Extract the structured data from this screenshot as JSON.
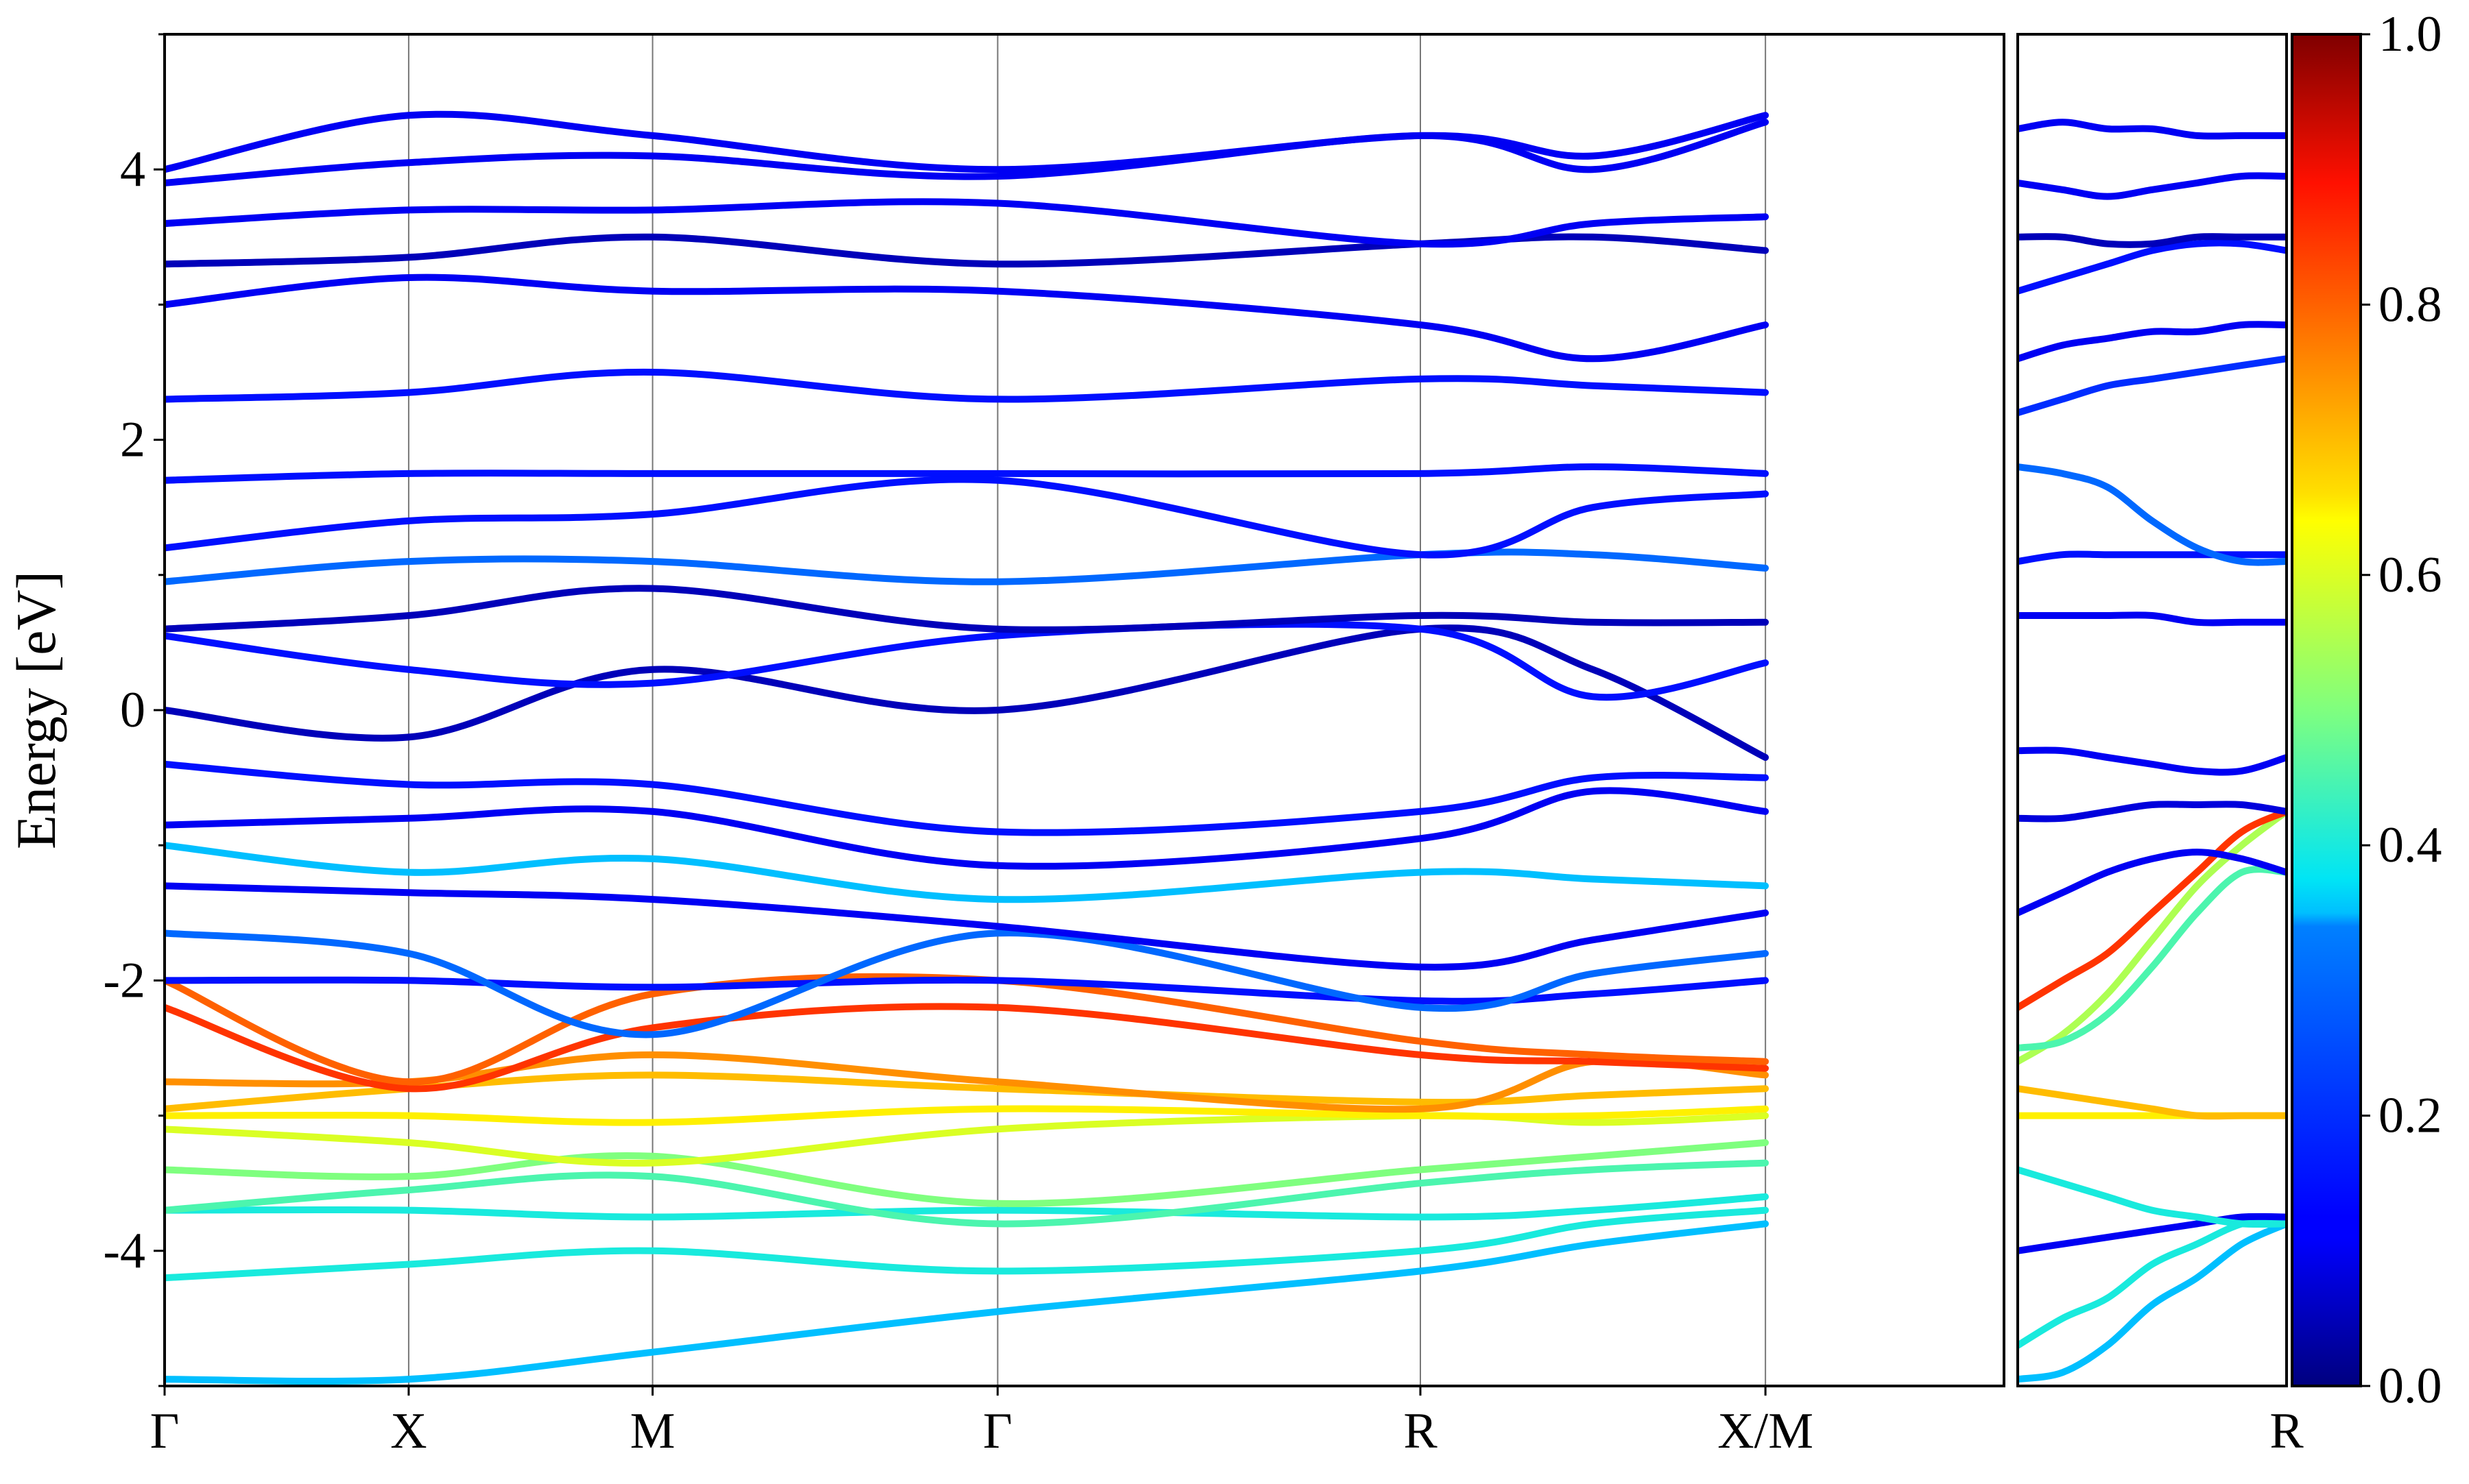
{
  "chart_data": {
    "type": "line",
    "title": "",
    "xlabel": "",
    "ylabel": "Energy [eV]",
    "ylim": [
      -5,
      5
    ],
    "yticks": [
      {
        "value": 4,
        "label": "4"
      },
      {
        "value": 2,
        "label": "2"
      },
      {
        "value": 0,
        "label": "0"
      },
      {
        "value": -2,
        "label": "-2"
      },
      {
        "value": -4,
        "label": "-4"
      }
    ],
    "path_segments": [
      {
        "xlim": [
          0,
          1
        ],
        "high_symmetry_points": [
          {
            "pos": 0.0,
            "label": "Γ"
          },
          {
            "pos": 0.1327,
            "label": "X"
          },
          {
            "pos": 0.2653,
            "label": "M"
          },
          {
            "pos": 0.4529,
            "label": "Γ"
          },
          {
            "pos": 0.6827,
            "label": "R"
          },
          {
            "pos": 0.8703,
            "label": "X/M"
          }
        ]
      },
      {
        "xlim": [
          0,
          1
        ],
        "high_symmetry_points": [
          {
            "pos": 1.0,
            "label": "R"
          }
        ]
      }
    ],
    "colorbar": {
      "colormap": "jet",
      "range": [
        0.0,
        1.0
      ],
      "ticks": [
        {
          "value": 0.0,
          "label": "0.0"
        },
        {
          "value": 0.2,
          "label": "0.2"
        },
        {
          "value": 0.4,
          "label": "0.4"
        },
        {
          "value": 0.6,
          "label": "0.6"
        },
        {
          "value": 0.8,
          "label": "0.8"
        },
        {
          "value": 1.0,
          "label": "1.0"
        }
      ]
    },
    "segment1_bands": [
      {
        "e": [
          -4.95,
          -4.95,
          -4.75,
          -4.45,
          -4.15,
          -3.95,
          -3.8
        ],
        "w": 0.35
      },
      {
        "e": [
          -4.2,
          -4.1,
          -4.0,
          -4.15,
          -4.0,
          -3.8,
          -3.7
        ],
        "w": 0.4
      },
      {
        "e": [
          -3.7,
          -3.7,
          -3.75,
          -3.7,
          -3.75,
          -3.7,
          -3.6
        ],
        "w": 0.4
      },
      {
        "e": [
          -3.7,
          -3.55,
          -3.45,
          -3.8,
          -3.5,
          -3.4,
          -3.35
        ],
        "w": 0.45
      },
      {
        "e": [
          -3.4,
          -3.45,
          -3.3,
          -3.65,
          -3.4,
          -3.3,
          -3.2
        ],
        "w": 0.5
      },
      {
        "e": [
          -3.1,
          -3.2,
          -3.35,
          -3.1,
          -3.0,
          -3.05,
          -3.0
        ],
        "w": 0.6
      },
      {
        "e": [
          -3.0,
          -3.0,
          -3.05,
          -2.95,
          -3.0,
          -3.0,
          -2.95
        ],
        "w": 0.65
      },
      {
        "e": [
          -2.95,
          -2.8,
          -2.7,
          -2.8,
          -2.9,
          -2.85,
          -2.8
        ],
        "w": 0.7
      },
      {
        "e": [
          -2.75,
          -2.75,
          -2.55,
          -2.75,
          -2.95,
          -2.6,
          -2.7
        ],
        "w": 0.75
      },
      {
        "e": [
          -2.2,
          -2.8,
          -2.35,
          -2.2,
          -2.55,
          -2.6,
          -2.65
        ],
        "w": 0.85
      },
      {
        "e": [
          -2.0,
          -2.75,
          -2.1,
          -2.0,
          -2.45,
          -2.55,
          -2.6
        ],
        "w": 0.8
      },
      {
        "e": [
          -2.0,
          -2.0,
          -2.05,
          -2.0,
          -2.15,
          -2.1,
          -2.0
        ],
        "w": 0.15
      },
      {
        "e": [
          -1.65,
          -1.8,
          -2.4,
          -1.65,
          -2.2,
          -1.95,
          -1.8
        ],
        "w": 0.3
      },
      {
        "e": [
          -1.3,
          -1.35,
          -1.4,
          -1.6,
          -1.9,
          -1.7,
          -1.5
        ],
        "w": 0.1
      },
      {
        "e": [
          -1.0,
          -1.2,
          -1.1,
          -1.4,
          -1.2,
          -1.25,
          -1.3
        ],
        "w": 0.35
      },
      {
        "e": [
          -0.85,
          -0.8,
          -0.75,
          -1.15,
          -0.95,
          -0.6,
          -0.75
        ],
        "w": 0.1
      },
      {
        "e": [
          -0.4,
          -0.55,
          -0.55,
          -0.9,
          -0.75,
          -0.5,
          -0.5
        ],
        "w": 0.15
      },
      {
        "e": [
          0.0,
          -0.2,
          0.3,
          0.0,
          0.6,
          0.3,
          -0.35
        ],
        "w": 0.05
      },
      {
        "e": [
          0.55,
          0.3,
          0.2,
          0.55,
          0.6,
          0.1,
          0.35
        ],
        "w": 0.15
      },
      {
        "e": [
          0.6,
          0.7,
          0.9,
          0.6,
          0.7,
          0.65,
          0.65
        ],
        "w": 0.05
      },
      {
        "e": [
          0.95,
          1.1,
          1.1,
          0.95,
          1.15,
          1.15,
          1.05
        ],
        "w": 0.3
      },
      {
        "e": [
          1.2,
          1.4,
          1.45,
          1.7,
          1.15,
          1.5,
          1.6
        ],
        "w": 0.15
      },
      {
        "e": [
          1.7,
          1.75,
          1.75,
          1.75,
          1.75,
          1.8,
          1.75
        ],
        "w": 0.15
      },
      {
        "e": [
          2.3,
          2.35,
          2.5,
          2.3,
          2.45,
          2.4,
          2.35
        ],
        "w": 0.15
      },
      {
        "e": [
          3.0,
          3.2,
          3.1,
          3.1,
          2.85,
          2.6,
          2.85
        ],
        "w": 0.1
      },
      {
        "e": [
          3.3,
          3.35,
          3.5,
          3.3,
          3.45,
          3.5,
          3.4
        ],
        "w": 0.05
      },
      {
        "e": [
          3.6,
          3.7,
          3.7,
          3.75,
          3.45,
          3.6,
          3.65
        ],
        "w": 0.1
      },
      {
        "e": [
          3.9,
          4.05,
          4.1,
          3.95,
          4.25,
          4.0,
          4.35
        ],
        "w": 0.1
      },
      {
        "e": [
          4.0,
          4.4,
          4.25,
          4.0,
          4.25,
          4.1,
          4.4
        ],
        "w": 0.1
      }
    ],
    "segment2_bands": [
      {
        "e": [
          -4.95,
          -4.9,
          -4.7,
          -4.4,
          -4.2,
          -3.95,
          -3.8
        ],
        "w": 0.35
      },
      {
        "e": [
          -4.7,
          -4.5,
          -4.35,
          -4.1,
          -3.95,
          -3.8,
          -3.75
        ],
        "w": 0.4
      },
      {
        "e": [
          -4.0,
          -3.95,
          -3.9,
          -3.85,
          -3.8,
          -3.75,
          -3.75
        ],
        "w": 0.1
      },
      {
        "e": [
          -3.4,
          -3.5,
          -3.6,
          -3.7,
          -3.75,
          -3.8,
          -3.8
        ],
        "w": 0.4
      },
      {
        "e": [
          -3.0,
          -3.0,
          -3.0,
          -3.0,
          -3.0,
          -3.0,
          -3.0
        ],
        "w": 0.65
      },
      {
        "e": [
          -2.8,
          -2.85,
          -2.9,
          -2.95,
          -3.0,
          -3.0,
          -3.0
        ],
        "w": 0.7
      },
      {
        "e": [
          -2.6,
          -2.4,
          -2.1,
          -1.7,
          -1.3,
          -1.0,
          -0.75
        ],
        "w": 0.55
      },
      {
        "e": [
          -2.5,
          -2.45,
          -2.25,
          -1.9,
          -1.5,
          -1.2,
          -1.2
        ],
        "w": 0.45
      },
      {
        "e": [
          -2.2,
          -2.0,
          -1.8,
          -1.5,
          -1.2,
          -0.9,
          -0.75
        ],
        "w": 0.85
      },
      {
        "e": [
          -1.5,
          -1.35,
          -1.2,
          -1.1,
          -1.05,
          -1.1,
          -1.2
        ],
        "w": 0.1
      },
      {
        "e": [
          -0.8,
          -0.8,
          -0.75,
          -0.7,
          -0.7,
          -0.7,
          -0.75
        ],
        "w": 0.08
      },
      {
        "e": [
          -0.3,
          -0.3,
          -0.35,
          -0.4,
          -0.45,
          -0.45,
          -0.35
        ],
        "w": 0.1
      },
      {
        "e": [
          0.7,
          0.7,
          0.7,
          0.7,
          0.65,
          0.65,
          0.65
        ],
        "w": 0.1
      },
      {
        "e": [
          1.1,
          1.15,
          1.15,
          1.15,
          1.15,
          1.15,
          1.15
        ],
        "w": 0.15
      },
      {
        "e": [
          1.8,
          1.75,
          1.65,
          1.4,
          1.2,
          1.1,
          1.1
        ],
        "w": 0.3
      },
      {
        "e": [
          2.2,
          2.3,
          2.4,
          2.45,
          2.5,
          2.55,
          2.6
        ],
        "w": 0.2
      },
      {
        "e": [
          2.6,
          2.7,
          2.75,
          2.8,
          2.8,
          2.85,
          2.85
        ],
        "w": 0.1
      },
      {
        "e": [
          3.1,
          3.2,
          3.3,
          3.4,
          3.45,
          3.45,
          3.4
        ],
        "w": 0.15
      },
      {
        "e": [
          3.5,
          3.5,
          3.45,
          3.45,
          3.5,
          3.5,
          3.5
        ],
        "w": 0.05
      },
      {
        "e": [
          3.9,
          3.85,
          3.8,
          3.85,
          3.9,
          3.95,
          3.95
        ],
        "w": 0.1
      },
      {
        "e": [
          4.3,
          4.35,
          4.3,
          4.3,
          4.25,
          4.25,
          4.25
        ],
        "w": 0.1
      }
    ]
  }
}
